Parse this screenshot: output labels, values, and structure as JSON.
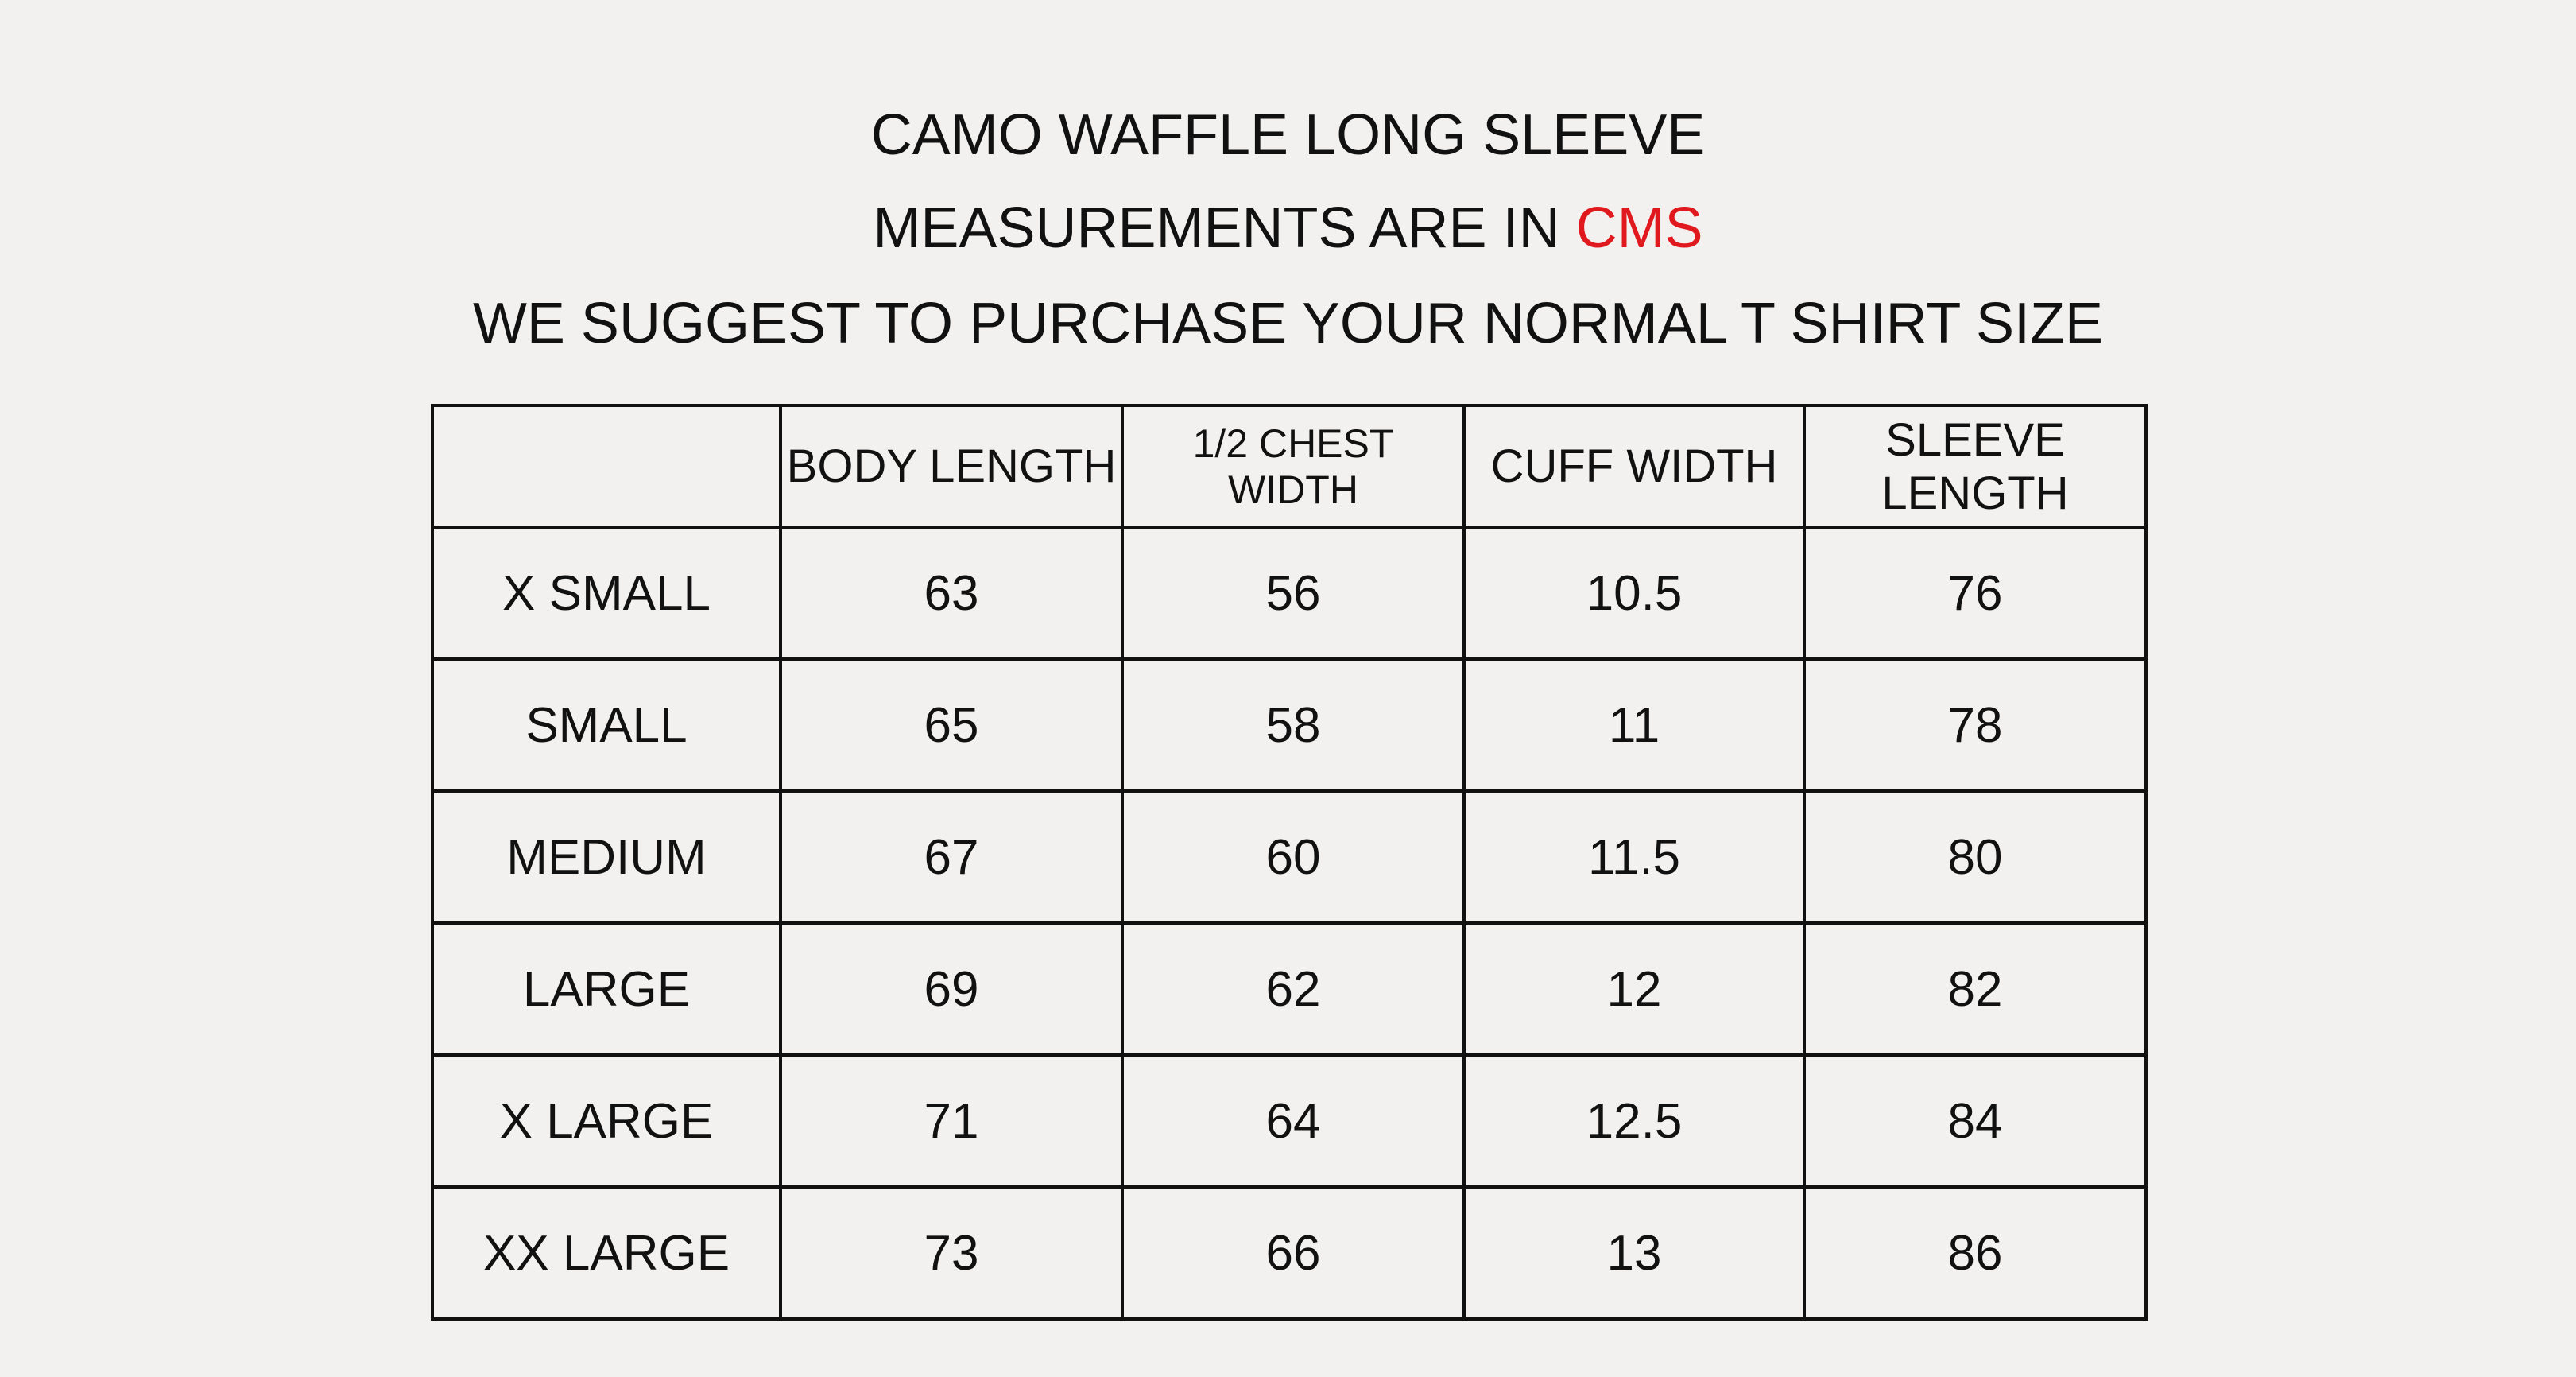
{
  "header": {
    "title": "CAMO WAFFLE LONG SLEEVE",
    "subtitle_prefix": "MEASUREMENTS ARE IN",
    "subtitle_unit": "CMS",
    "note": "WE SUGGEST TO PURCHASE YOUR NORMAL T SHIRT SIZE"
  },
  "table": {
    "columns": [
      "BODY LENGTH",
      "1/2 CHEST WIDTH",
      "CUFF WIDTH",
      "SLEEVE LENGTH"
    ],
    "rows": [
      {
        "size": "X SMALL",
        "values": [
          63,
          56,
          10.5,
          76
        ]
      },
      {
        "size": "SMALL",
        "values": [
          65,
          58,
          11,
          78
        ]
      },
      {
        "size": "MEDIUM",
        "values": [
          67,
          60,
          11.5,
          80
        ]
      },
      {
        "size": "LARGE",
        "values": [
          69,
          62,
          12,
          82
        ]
      },
      {
        "size": "X LARGE",
        "values": [
          71,
          64,
          12.5,
          84
        ]
      },
      {
        "size": "XX LARGE",
        "values": [
          73,
          66,
          13,
          86
        ]
      }
    ]
  }
}
